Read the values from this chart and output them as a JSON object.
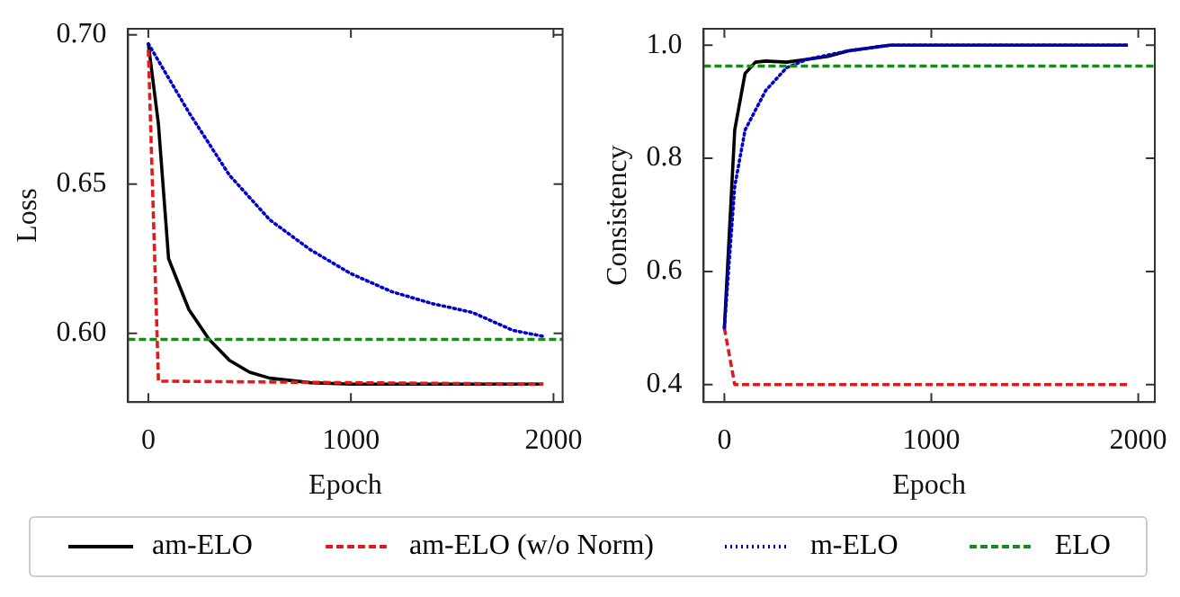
{
  "chart_data": [
    {
      "type": "line",
      "xlabel": "Epoch",
      "ylabel": "Loss",
      "xlim": [
        -100,
        2045
      ],
      "ylim": [
        0.577,
        0.702
      ],
      "xticks": [
        0,
        1000,
        2000
      ],
      "yticks": [
        {
          "value": 0.6,
          "label": "0.60"
        },
        {
          "value": 0.65,
          "label": "0.65"
        },
        {
          "value": 0.7,
          "label": "0.70"
        }
      ],
      "grid": false,
      "legend": "bottom",
      "marker": "none",
      "series": [
        {
          "name": "am-ELO",
          "color": "#000000",
          "line_style": "solid",
          "x": [
            0,
            50,
            100,
            200,
            300,
            400,
            500,
            600,
            800,
            1000,
            1950
          ],
          "values": [
            0.697,
            0.67,
            0.625,
            0.608,
            0.598,
            0.591,
            0.587,
            0.585,
            0.5835,
            0.583,
            0.583
          ]
        },
        {
          "name": "am-ELO (w/o Norm)",
          "color": "#e31a1c",
          "line_style": "dashed",
          "x": [
            0,
            50,
            1950
          ],
          "values": [
            0.695,
            0.584,
            0.583
          ]
        },
        {
          "name": "m-ELO",
          "color": "#0000cc",
          "line_style": "dotted",
          "x": [
            0,
            200,
            400,
            600,
            800,
            1000,
            1200,
            1400,
            1600,
            1800,
            1950
          ],
          "values": [
            0.697,
            0.674,
            0.653,
            0.638,
            0.628,
            0.62,
            0.614,
            0.61,
            0.607,
            0.601,
            0.599
          ]
        },
        {
          "name": "ELO",
          "color": "#1a8a1a",
          "line_style": "dashed",
          "x": [
            -100,
            2045
          ],
          "values": [
            0.598,
            0.598
          ]
        }
      ]
    },
    {
      "type": "line",
      "xlabel": "Epoch",
      "ylabel": "Consistency",
      "xlim": [
        -100,
        2080
      ],
      "ylim": [
        0.369,
        1.029
      ],
      "xticks": [
        0,
        1000,
        2000
      ],
      "yticks": [
        {
          "value": 0.4,
          "label": "0.4"
        },
        {
          "value": 0.6,
          "label": "0.6"
        },
        {
          "value": 0.8,
          "label": "0.8"
        },
        {
          "value": 1.0,
          "label": "1.0"
        }
      ],
      "grid": false,
      "legend": "bottom",
      "marker": "none",
      "series": [
        {
          "name": "am-ELO",
          "color": "#000000",
          "line_style": "solid",
          "x": [
            0,
            50,
            100,
            150,
            200,
            300,
            400,
            500,
            600,
            800,
            1950
          ],
          "values": [
            0.5,
            0.85,
            0.95,
            0.97,
            0.972,
            0.97,
            0.975,
            0.98,
            0.99,
            1.0,
            1.0
          ]
        },
        {
          "name": "am-ELO (w/o Norm)",
          "color": "#e31a1c",
          "line_style": "dashed",
          "x": [
            0,
            50,
            1950
          ],
          "values": [
            0.5,
            0.4,
            0.4
          ]
        },
        {
          "name": "m-ELO",
          "color": "#0000cc",
          "line_style": "dotted",
          "x": [
            0,
            50,
            100,
            200,
            300,
            400,
            600,
            800,
            1950
          ],
          "values": [
            0.5,
            0.75,
            0.85,
            0.92,
            0.96,
            0.975,
            0.99,
            1.0,
            1.0
          ]
        },
        {
          "name": "ELO",
          "color": "#1a8a1a",
          "line_style": "dashed",
          "x": [
            -100,
            2080
          ],
          "values": [
            0.963,
            0.963
          ]
        }
      ]
    }
  ]
}
